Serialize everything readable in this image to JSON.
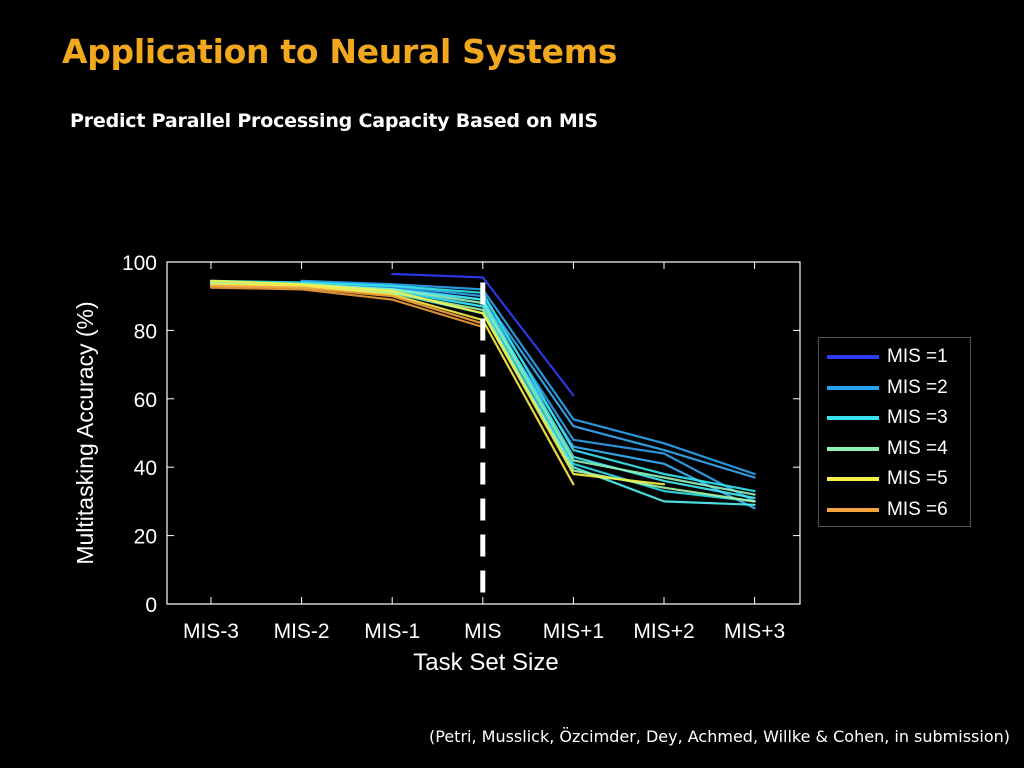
{
  "slide": {
    "title": "Application to Neural Systems",
    "subtitle": "Predict Parallel Processing Capacity Based on MIS",
    "citation": "(Petri, Musslick, Özcimder, Dey, Achmed, Willke & Cohen, in submission)"
  },
  "chart_data": {
    "type": "line",
    "xlabel": "Task Set Size",
    "ylabel": "Multitasking Accuracy (%)",
    "categories": [
      "MIS-3",
      "MIS-2",
      "MIS-1",
      "MIS",
      "MIS+1",
      "MIS+2",
      "MIS+3"
    ],
    "ylim": [
      0,
      100
    ],
    "yticks": [
      0,
      20,
      40,
      60,
      80,
      100
    ],
    "grid": false,
    "legend_position": "right",
    "reference_line": {
      "category": "MIS",
      "style": "dashed",
      "color": "#ffffff"
    },
    "series": [
      {
        "name": "MIS =1",
        "color": "#2f3cf2",
        "values": [
          null,
          null,
          96.5,
          95.5,
          61,
          null,
          null
        ]
      },
      {
        "name": "MIS =2",
        "color": "#2aa3ee",
        "values": [
          null,
          94.5,
          93.5,
          92,
          54,
          47,
          38
        ]
      },
      {
        "name": "MIS =2",
        "color": "#35a8f0",
        "values": [
          null,
          94,
          93,
          90,
          52,
          45,
          37
        ]
      },
      {
        "name": "MIS =2",
        "color": "#2f9ee8",
        "values": [
          null,
          93.5,
          92.5,
          89,
          48,
          44,
          30
        ]
      },
      {
        "name": "MIS =2",
        "color": "#3aaef2",
        "values": [
          null,
          93,
          92,
          87,
          46,
          41,
          28
        ]
      },
      {
        "name": "MIS =3",
        "color": "#36e3ee",
        "values": [
          94.5,
          94,
          93,
          91,
          45,
          38,
          33
        ]
      },
      {
        "name": "MIS =3",
        "color": "#45e8ef",
        "values": [
          94,
          93.5,
          92,
          89,
          43,
          36,
          31
        ]
      },
      {
        "name": "MIS =3",
        "color": "#30d8e6",
        "values": [
          93.5,
          93,
          91.5,
          87,
          41,
          33,
          30
        ]
      },
      {
        "name": "MIS =3",
        "color": "#52eef2",
        "values": [
          93,
          92.5,
          91,
          85,
          40,
          30,
          29
        ]
      },
      {
        "name": "MIS =4",
        "color": "#8ff0b8",
        "values": [
          94,
          93.5,
          92,
          88,
          42,
          37,
          32
        ]
      },
      {
        "name": "MIS =4",
        "color": "#a4f5a8",
        "values": [
          93.5,
          93,
          91,
          86,
          39,
          34,
          30
        ]
      },
      {
        "name": "MIS =5",
        "color": "#f5f04a",
        "values": [
          94.5,
          93.5,
          91.5,
          85,
          38,
          35,
          null
        ]
      },
      {
        "name": "MIS =5",
        "color": "#fbe94a",
        "values": [
          93.5,
          93,
          90.5,
          83,
          35,
          null,
          null
        ]
      },
      {
        "name": "MIS =6",
        "color": "#f4a43c",
        "values": [
          93,
          92.5,
          90,
          82,
          null,
          null,
          null
        ]
      },
      {
        "name": "MIS =6",
        "color": "#e89a35",
        "values": [
          92.5,
          92,
          89,
          81,
          null,
          null,
          null
        ]
      }
    ],
    "legend": [
      {
        "label": "MIS =1",
        "color": "#2f3cf2"
      },
      {
        "label": "MIS =2",
        "color": "#2aa3ee"
      },
      {
        "label": "MIS =3",
        "color": "#36e3ee"
      },
      {
        "label": "MIS =4",
        "color": "#8ff0b8"
      },
      {
        "label": "MIS =5",
        "color": "#f5f04a"
      },
      {
        "label": "MIS =6",
        "color": "#f4a43c"
      }
    ]
  }
}
